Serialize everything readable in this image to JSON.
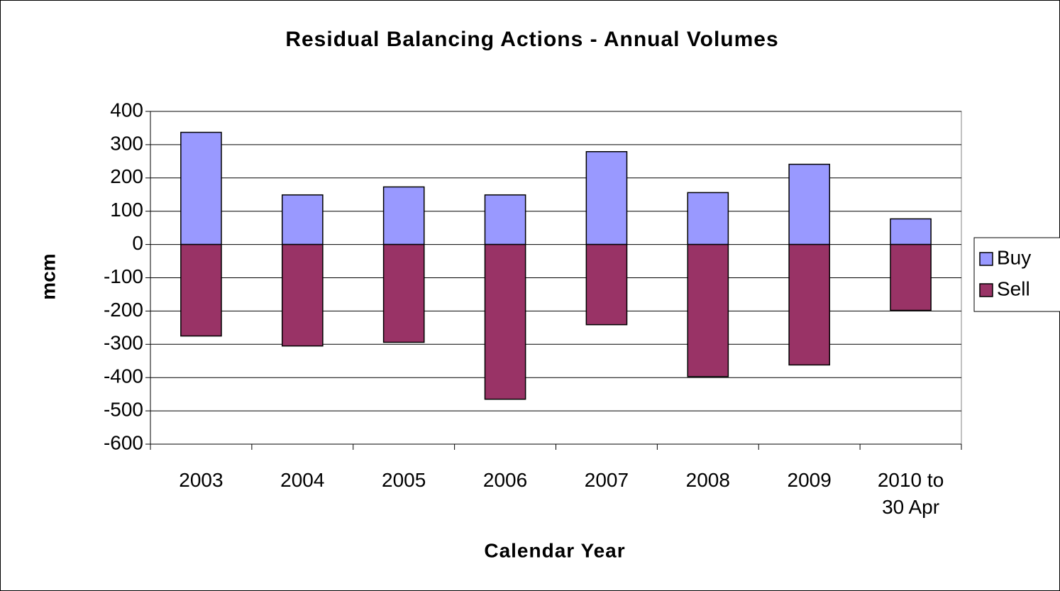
{
  "chart_data": {
    "type": "bar",
    "title": "Residual Balancing Actions - Annual Volumes",
    "x_label": "Calendar Year",
    "y_label": "mcm",
    "categories": [
      "2003",
      "2004",
      "2005",
      "2006",
      "2007",
      "2008",
      "2009",
      "2010 to 30 Apr"
    ],
    "series": [
      {
        "name": "Buy",
        "color": "#9999ff",
        "values": [
          337,
          149,
          173,
          149,
          279,
          156,
          241,
          77
        ]
      },
      {
        "name": "Sell",
        "color": "#993366",
        "values": [
          -275,
          -305,
          -294,
          -465,
          -241,
          -397,
          -362,
          -198
        ]
      }
    ],
    "ylim": [
      -600,
      400
    ],
    "yticks": [
      -600,
      -500,
      -400,
      -300,
      -200,
      -100,
      0,
      100,
      200,
      300,
      400
    ],
    "grid": true,
    "legend": "right"
  }
}
